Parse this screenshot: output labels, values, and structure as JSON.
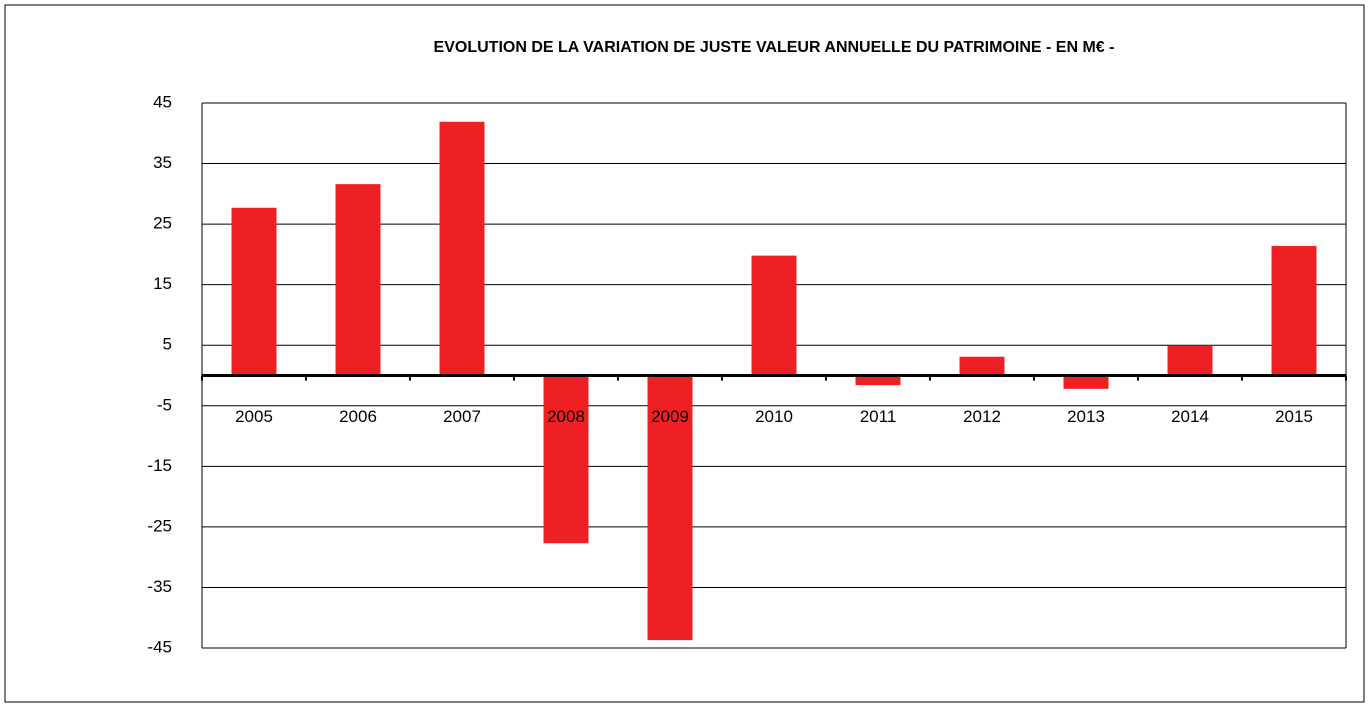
{
  "chart_data": {
    "type": "bar",
    "title": "EVOLUTION  DE LA VARIATION  DE JUSTE VALEUR ANNUELLE  DU PATRIMOINE  - EN M€ -",
    "categories": [
      "2005",
      "2006",
      "2007",
      "2008",
      "2009",
      "2010",
      "2011",
      "2012",
      "2013",
      "2014",
      "2015"
    ],
    "values": [
      27.7,
      31.6,
      41.9,
      -27.7,
      -43.7,
      19.8,
      -1.6,
      3.1,
      -2.2,
      4.9,
      21.4
    ],
    "color": "#ee2024",
    "ylim": [
      -45,
      45
    ],
    "yticks": [
      -45,
      -35,
      -25,
      -15,
      -5,
      5,
      15,
      25,
      35,
      45
    ],
    "grid": true
  }
}
